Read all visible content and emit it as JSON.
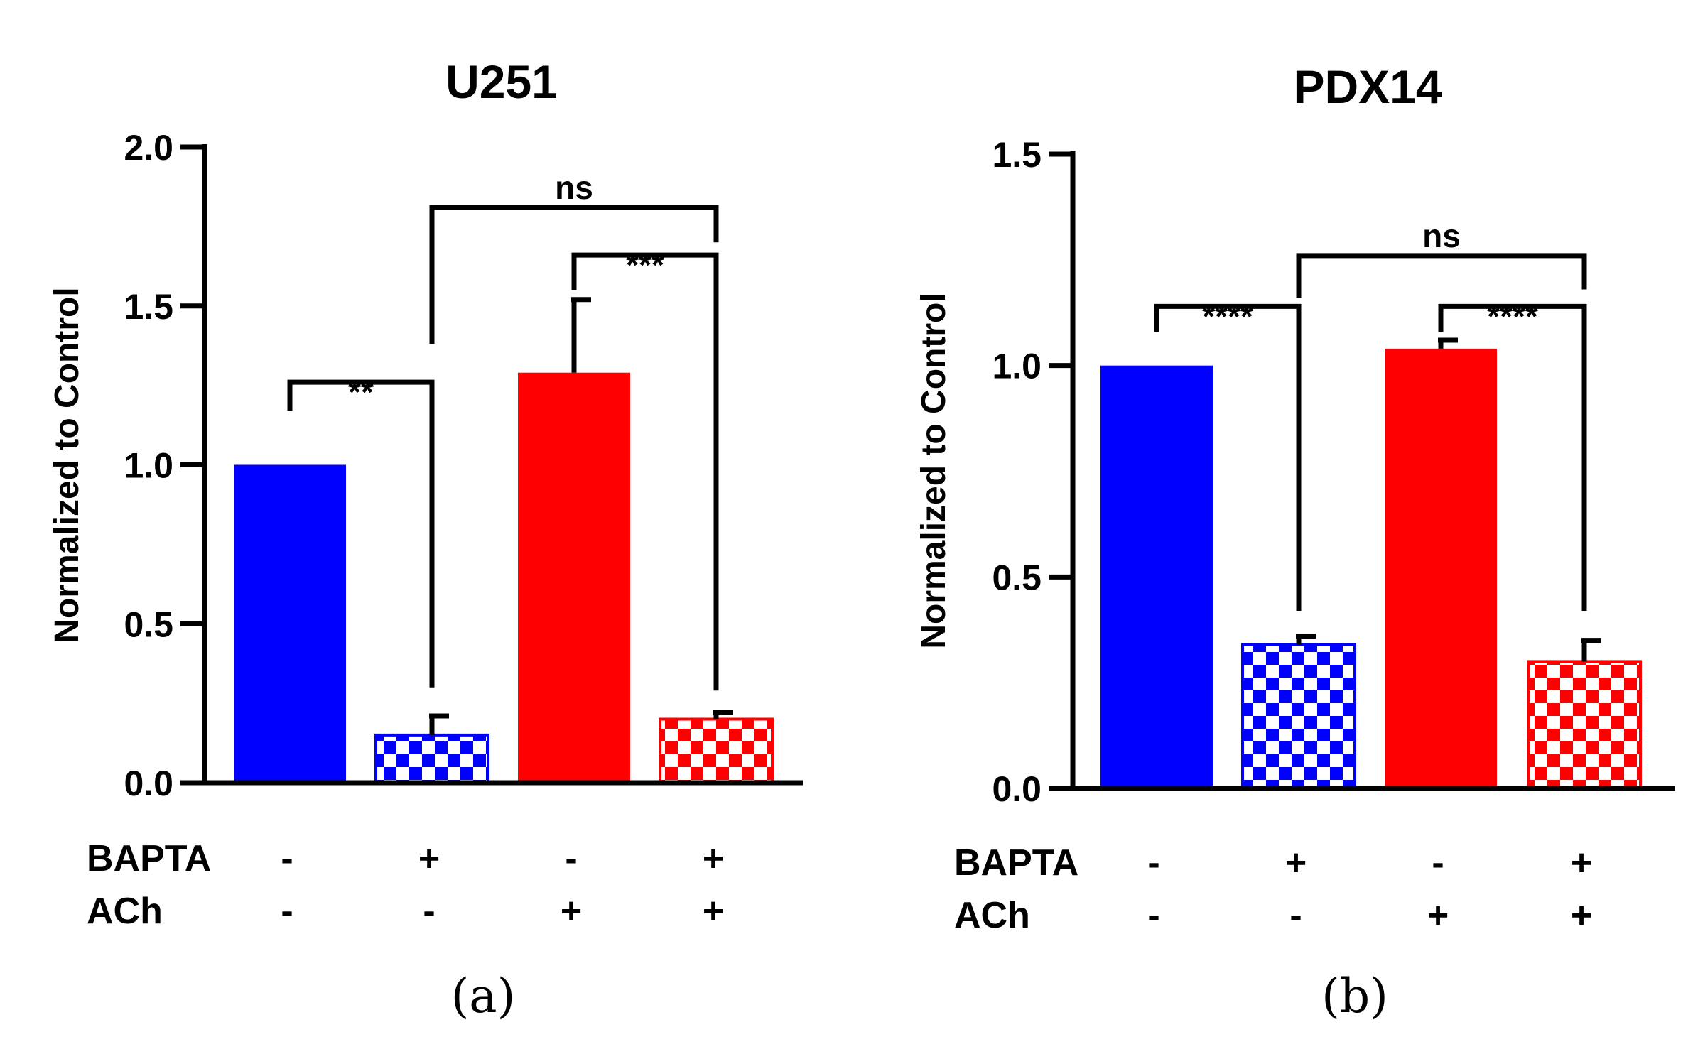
{
  "chart_data": [
    {
      "type": "bar",
      "panel_label": "(a)",
      "title": "U251",
      "ylabel": "Normalized to Control",
      "ylim": [
        0,
        2.0
      ],
      "yticks": [
        0.0,
        0.5,
        1.0,
        1.5,
        2.0
      ],
      "ytick_labels": [
        "0.0",
        "0.5",
        "1.0",
        "1.5",
        "2.0"
      ],
      "bars": [
        {
          "value": 1.0,
          "error": 0.0,
          "color": "#0000ff",
          "pattern": "solid"
        },
        {
          "value": 0.15,
          "error": 0.06,
          "color": "#0000ff",
          "pattern": "checker"
        },
        {
          "value": 1.29,
          "error": 0.23,
          "color": "#ff0000",
          "pattern": "solid"
        },
        {
          "value": 0.2,
          "error": 0.02,
          "color": "#ff0000",
          "pattern": "checker"
        }
      ],
      "conditions": [
        {
          "name": "BAPTA",
          "values": [
            "-",
            "+",
            "-",
            "+"
          ]
        },
        {
          "name": "ACh",
          "values": [
            "-",
            "-",
            "+",
            "+"
          ]
        }
      ],
      "significance": [
        {
          "from": 0,
          "to": 1,
          "label": "**",
          "y": 1.26,
          "left_end": 1.17,
          "right_end": 0.3
        },
        {
          "from": 2,
          "to": 3,
          "label": "***",
          "y": 1.66,
          "left_end": 1.55,
          "right_end": 0.29
        },
        {
          "from": 1,
          "to": 3,
          "label": "ns",
          "y": 1.81,
          "left_end": 1.38,
          "right_end": 1.7
        }
      ]
    },
    {
      "type": "bar",
      "panel_label": "(b)",
      "title": "PDX14",
      "ylabel": "Normalized to Control",
      "ylim": [
        0,
        1.5
      ],
      "yticks": [
        0.0,
        0.5,
        1.0,
        1.5
      ],
      "ytick_labels": [
        "0.0",
        "0.5",
        "1.0",
        "1.5"
      ],
      "bars": [
        {
          "value": 1.0,
          "error": 0.0,
          "color": "#0000ff",
          "pattern": "solid"
        },
        {
          "value": 0.34,
          "error": 0.02,
          "color": "#0000ff",
          "pattern": "checker"
        },
        {
          "value": 1.04,
          "error": 0.02,
          "color": "#ff0000",
          "pattern": "solid"
        },
        {
          "value": 0.3,
          "error": 0.05,
          "color": "#ff0000",
          "pattern": "checker"
        }
      ],
      "conditions": [
        {
          "name": "BAPTA",
          "values": [
            "-",
            "+",
            "-",
            "+"
          ]
        },
        {
          "name": "ACh",
          "values": [
            "-",
            "-",
            "+",
            "+"
          ]
        }
      ],
      "significance": [
        {
          "from": 0,
          "to": 1,
          "label": "****",
          "y": 1.14,
          "left_end": 1.08,
          "right_end": 0.42
        },
        {
          "from": 2,
          "to": 3,
          "label": "****",
          "y": 1.14,
          "left_end": 1.08,
          "right_end": 0.42
        },
        {
          "from": 1,
          "to": 3,
          "label": "ns",
          "y": 1.26,
          "left_end": 1.16,
          "right_end": 1.18
        }
      ]
    }
  ]
}
